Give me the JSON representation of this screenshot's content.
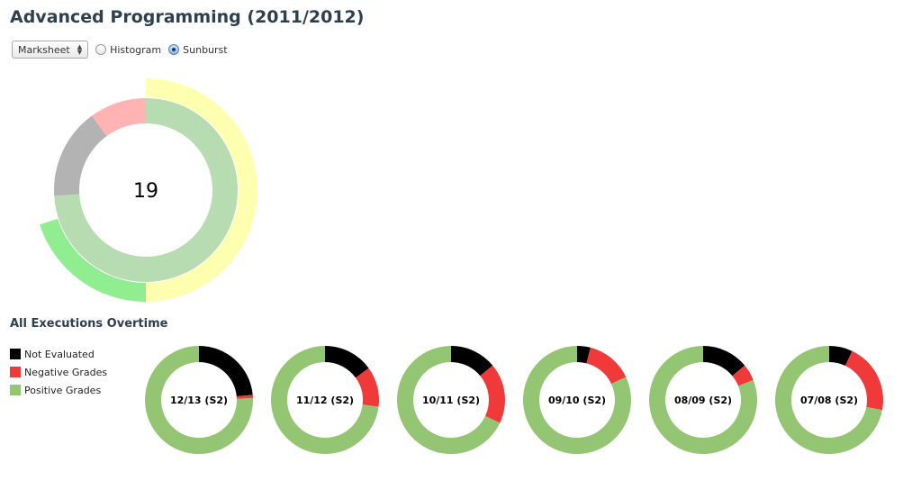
{
  "page": {
    "title": "Advanced Programming (2011/2012)"
  },
  "controls": {
    "view_select": "Marksheet",
    "radios": [
      {
        "label": "Histogram",
        "checked": false
      },
      {
        "label": "Sunburst",
        "checked": true
      }
    ]
  },
  "colors": {
    "not_evaluated": "#000000",
    "negative": "#f03a3a",
    "positive": "#93c572"
  },
  "chart_data": [
    {
      "type": "sunburst",
      "center_label": "19",
      "inner_ring": [
        {
          "color": "#b8dcb2",
          "value": 74
        },
        {
          "color": "#b3b3b3",
          "value": 16
        },
        {
          "color": "#ffb3b3",
          "value": 10
        }
      ],
      "outer_ring": [
        {
          "color": "#ffffb0",
          "value": 50
        },
        {
          "color": "#90ee90",
          "value": 20
        },
        {
          "color": "none",
          "value": 30
        }
      ]
    },
    {
      "type": "pie",
      "title": "All Executions Overtime",
      "legend": [
        "Not Evaluated",
        "Negative Grades",
        "Positive Grades"
      ],
      "legend_position": "left",
      "series": [
        {
          "name": "12/13 (S2)",
          "values": [
            23.5,
            1,
            75.5
          ]
        },
        {
          "name": "11/12 (S2)",
          "values": [
            15,
            12,
            73
          ]
        },
        {
          "name": "10/11 (S2)",
          "values": [
            14,
            18,
            68
          ]
        },
        {
          "name": "09/10 (S2)",
          "values": [
            4,
            14,
            82
          ]
        },
        {
          "name": "08/09 (S2)",
          "values": [
            14,
            5,
            81
          ]
        },
        {
          "name": "07/08 (S2)",
          "values": [
            7,
            21,
            72
          ]
        }
      ]
    }
  ]
}
